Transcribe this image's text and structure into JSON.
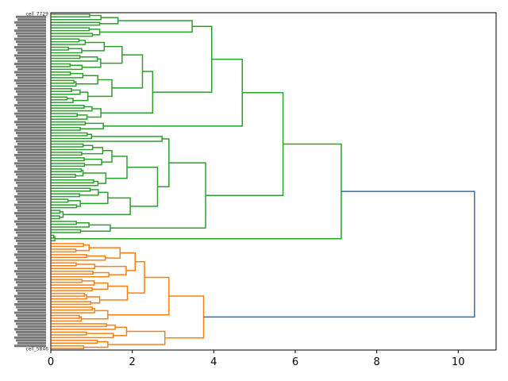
{
  "chart_data": {
    "type": "dendrogram",
    "orientation": "horizontal, leaves on left",
    "title": "",
    "xlabel": "",
    "ylabel": "",
    "xlim": [
      0,
      10.93
    ],
    "xticks": [
      0,
      2,
      4,
      6,
      8,
      10
    ],
    "xtick_labels": [
      "0",
      "2",
      "4",
      "6",
      "8",
      "10"
    ],
    "grid": false,
    "leaf_count_estimate": 122,
    "leaf_labels_legible": {
      "first": "cell_7729",
      "last": "cell_5846"
    },
    "colors": {
      "cluster_1": "#2ca02c",
      "cluster_2": "#ff7f0e",
      "above_threshold": "#1f77b4"
    },
    "tree": {
      "h": 10.4,
      "color": "above_threshold",
      "c": [
        {
          "h": 7.13,
          "color": "cluster_1",
          "c": [
            {
              "h": 5.7,
              "c": [
                {
                  "h": 4.7,
                  "c": [
                    {
                      "h": 3.95,
                      "c": [
                        {
                          "h": 3.47,
                          "c": [
                            {
                              "n": 5,
                              "h": 1.65
                            },
                            {
                              "n": 4,
                              "h": 1.2
                            }
                          ]
                        },
                        {
                          "h": 2.5,
                          "c": [
                            {
                              "h": 2.25,
                              "c": [
                                {
                                  "n": 12,
                                  "h": 1.75
                                },
                                {
                                  "n": 12,
                                  "h": 1.5
                                }
                              ]
                            },
                            {
                              "n": 6,
                              "h": 1.23
                            }
                          ]
                        }
                      ]
                    },
                    {
                      "n": 4,
                      "h": 1.29
                    }
                  ]
                },
                {
                  "h": 3.8,
                  "c": [
                    {
                      "h": 2.9,
                      "c": [
                        {
                          "h": 2.73,
                          "c": [
                            {
                              "n": 3,
                              "h": 1.0
                            },
                            {
                              "n": 1,
                              "h": 0
                            }
                          ]
                        },
                        {
                          "h": 2.62,
                          "c": [
                            {
                              "h": 1.87,
                              "c": [
                                {
                                  "n": 9,
                                  "h": 1.5
                                },
                                {
                                  "n": 7,
                                  "h": 1.35
                                }
                              ]
                            },
                            {
                              "h": 1.95,
                              "c": [
                                {
                                  "n": 8,
                                  "h": 1.4
                                },
                                {
                                  "n": 4,
                                  "h": 0.3
                                }
                              ]
                            }
                          ]
                        }
                      ]
                    },
                    {
                      "n": 5,
                      "h": 1.46
                    }
                  ]
                }
              ]
            },
            {
              "n": 3,
              "h": 0.1
            }
          ]
        },
        {
          "h": 3.75,
          "color": "cluster_2",
          "c": [
            {
              "h": 2.9,
              "c": [
                {
                  "h": 2.3,
                  "c": [
                    {
                      "h": 2.07,
                      "c": [
                        {
                          "n": 7,
                          "h": 1.7
                        },
                        {
                          "n": 6,
                          "h": 1.85
                        }
                      ]
                    },
                    {
                      "h": 1.88,
                      "c": [
                        {
                          "n": 5,
                          "h": 1.4
                        },
                        {
                          "n": 5,
                          "h": 1.2
                        }
                      ]
                    }
                  ]
                },
                {
                  "n": 6,
                  "h": 1.4
                }
              ]
            },
            {
              "h": 2.8,
              "c": [
                {
                  "n": 6,
                  "h": 1.86
                },
                {
                  "n": 4,
                  "h": 1.4
                }
              ]
            }
          ]
        }
      ]
    }
  }
}
